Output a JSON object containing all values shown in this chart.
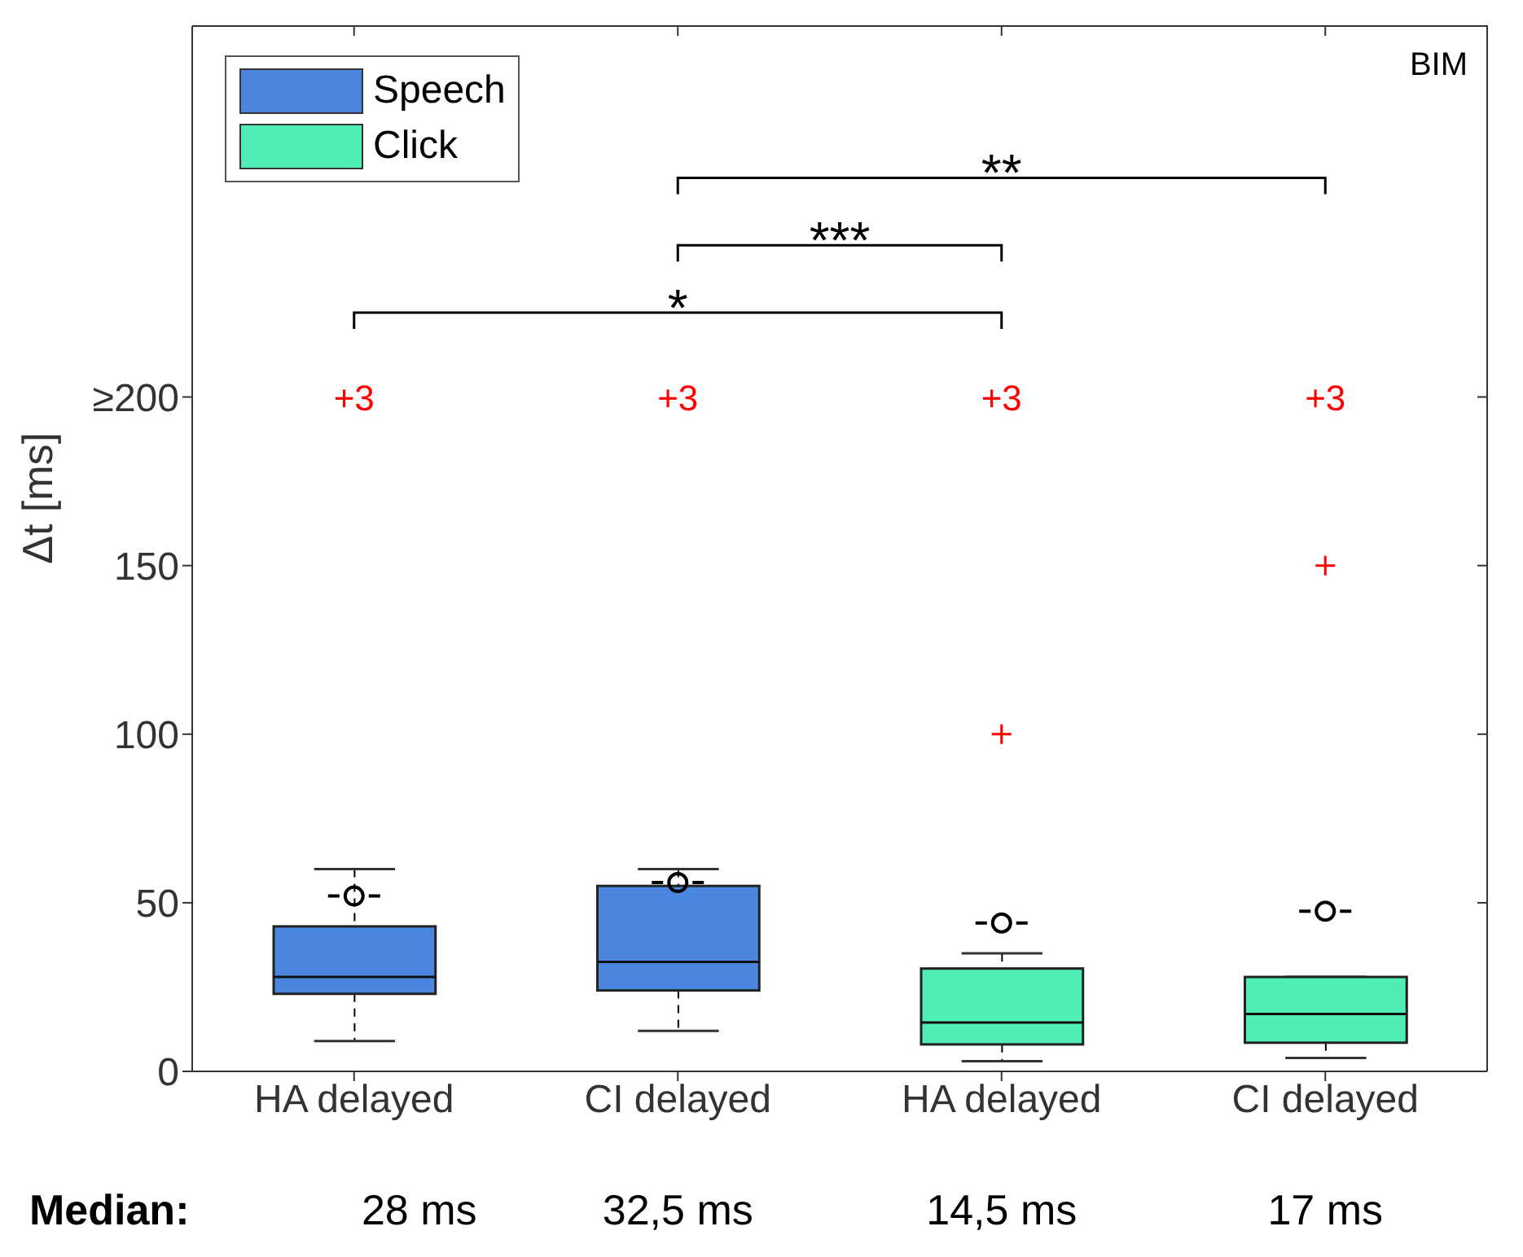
{
  "chart_data": {
    "type": "box",
    "ylabel": "Δt [ms]",
    "categories": [
      "HA delayed",
      "CI delayed",
      "HA delayed",
      "CI delayed"
    ],
    "series": [
      {
        "name": "Speech",
        "color": "#4a86e0",
        "boxes": [
          {
            "low": 9,
            "q1": 23,
            "median": 28,
            "q3": 43,
            "high": 60,
            "mean": 52
          },
          {
            "low": 12,
            "q1": 24,
            "median": 32.5,
            "q3": 55,
            "high": 60,
            "mean": 56
          },
          null,
          null
        ]
      },
      {
        "name": "Click",
        "color": "#50eeb4",
        "boxes": [
          null,
          null,
          {
            "low": 3,
            "q1": 8,
            "median": 14.5,
            "q3": 30.5,
            "high": 35,
            "mean": 44,
            "outliers": [
              100
            ]
          },
          {
            "low": 4,
            "q1": 8.5,
            "median": 17,
            "q3": 28,
            "high": 28,
            "mean": 47.5,
            "outliers": [
              150
            ]
          }
        ]
      }
    ],
    "ylim": [
      0,
      310
    ],
    "yticks": [
      0,
      50,
      100,
      150,
      {
        "value": 200,
        "label": "≥200"
      }
    ],
    "legend": "top left",
    "annotations": [
      "BIM",
      "*",
      "***",
      "**",
      "Median:",
      "28 ms",
      "32,5 ms",
      "14,5 ms",
      "17 ms",
      "+3",
      "+3",
      "+3",
      "+3"
    ]
  }
}
